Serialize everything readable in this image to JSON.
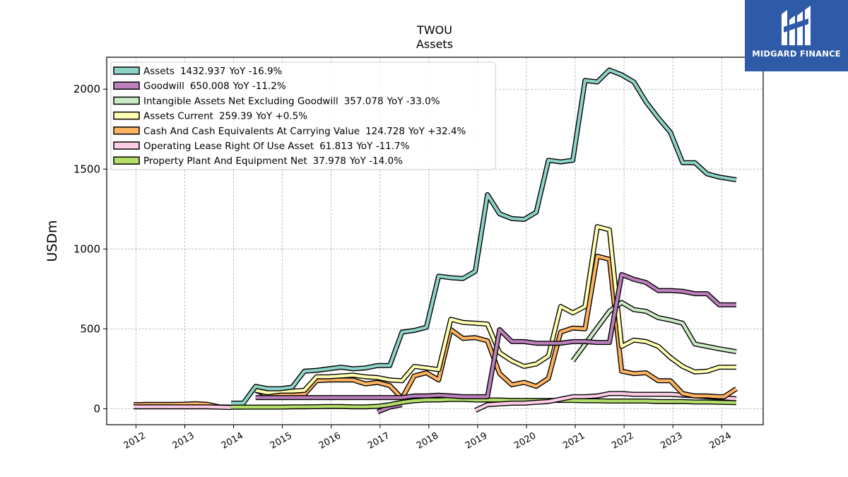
{
  "brand": {
    "name": "MIDGARD FINANCE",
    "color": "#2f5aa8"
  },
  "chart_data": {
    "type": "line",
    "title": "TWOU",
    "subtitle": "Assets",
    "ylabel": "USDm",
    "xlabel": "",
    "xlim": [
      2011.4,
      2024.85
    ],
    "ylim": [
      -100,
      2200
    ],
    "yticks": [
      0,
      500,
      1000,
      1500,
      2000
    ],
    "xticks": [
      "2012",
      "2013",
      "2014",
      "2015",
      "2016",
      "2017",
      "2018",
      "2019",
      "2020",
      "2021",
      "2022",
      "2023",
      "2024"
    ],
    "grid": true,
    "legend_position": "top-left",
    "series": [
      {
        "name": "Assets",
        "value": "1432.937",
        "yoy": "YoY -16.9%",
        "color": "#8dd3c7",
        "x": [
          2013.95,
          2014.2,
          2014.45,
          2014.7,
          2014.95,
          2015.2,
          2015.45,
          2015.7,
          2015.95,
          2016.2,
          2016.45,
          2016.7,
          2016.95,
          2017.2,
          2017.45,
          2017.7,
          2017.95,
          2018.2,
          2018.45,
          2018.7,
          2018.95,
          2019.2,
          2019.45,
          2019.7,
          2019.95,
          2020.2,
          2020.45,
          2020.7,
          2020.95,
          2021.2,
          2021.45,
          2021.7,
          2021.95,
          2022.2,
          2022.45,
          2022.7,
          2022.95,
          2023.2,
          2023.45,
          2023.7,
          2023.95,
          2024.3
        ],
        "y": [
          35,
          35,
          140,
          125,
          125,
          135,
          235,
          240,
          250,
          260,
          250,
          255,
          270,
          270,
          480,
          490,
          510,
          830,
          820,
          815,
          860,
          1340,
          1220,
          1190,
          1185,
          1230,
          1555,
          1545,
          1555,
          2055,
          2045,
          2120,
          2090,
          2045,
          1920,
          1820,
          1730,
          1540,
          1540,
          1470,
          1450,
          1433
        ]
      },
      {
        "name": "Goodwill",
        "value": "650.008",
        "yoy": "YoY -11.2%",
        "color": "#bc80bd",
        "x": [
          2014.45,
          2014.7,
          2014.95,
          2015.2,
          2015.45,
          2015.7,
          2015.95,
          2016.2,
          2016.45,
          2016.7,
          2016.95,
          2017.2,
          2017.45,
          2017.7,
          2017.95,
          2018.2,
          2018.45,
          2018.7,
          2018.95,
          2019.2,
          2019.45,
          2019.7,
          2019.95,
          2020.2,
          2020.45,
          2020.7,
          2020.95,
          2021.2,
          2021.45,
          2021.7,
          2021.95,
          2022.2,
          2022.45,
          2022.7,
          2022.95,
          2023.2,
          2023.45,
          2023.7,
          2023.95,
          2024.3
        ],
        "y": [
          70,
          70,
          70,
          70,
          70,
          70,
          70,
          70,
          70,
          70,
          70,
          70,
          70,
          80,
          80,
          85,
          80,
          75,
          75,
          75,
          495,
          420,
          420,
          410,
          410,
          410,
          420,
          420,
          415,
          415,
          840,
          810,
          790,
          740,
          740,
          735,
          720,
          720,
          650,
          650
        ]
      },
      {
        "name": "Intangible Assets Net Excluding Goodwill",
        "value": "357.078",
        "yoy": "YoY -33.0%",
        "color": "#ccebc5",
        "x": [
          2020.95,
          2021.7,
          2021.95,
          2022.2,
          2022.45,
          2022.7,
          2022.95,
          2023.2,
          2023.45,
          2023.7,
          2023.95,
          2024.3
        ],
        "y": [
          300,
          610,
          665,
          620,
          610,
          570,
          555,
          535,
          405,
          390,
          375,
          357
        ]
      },
      {
        "name": "Assets Current",
        "value": "259.39",
        "yoy": "YoY +0.5%",
        "color": "#ffffb3",
        "x": [
          2014.45,
          2014.7,
          2014.95,
          2015.2,
          2015.45,
          2015.7,
          2015.95,
          2016.2,
          2016.45,
          2016.7,
          2016.95,
          2017.2,
          2017.45,
          2017.7,
          2017.95,
          2018.2,
          2018.45,
          2018.7,
          2018.95,
          2019.2,
          2019.45,
          2019.7,
          2019.95,
          2020.2,
          2020.45,
          2020.7,
          2020.95,
          2021.2,
          2021.45,
          2021.7,
          2021.95,
          2022.2,
          2022.45,
          2022.7,
          2022.95,
          2023.2,
          2023.45,
          2023.7,
          2023.95,
          2024.3
        ],
        "y": [
          115,
          100,
          110,
          110,
          115,
          200,
          200,
          205,
          210,
          200,
          195,
          180,
          175,
          265,
          255,
          245,
          560,
          540,
          535,
          530,
          350,
          300,
          265,
          280,
          330,
          640,
          600,
          640,
          1140,
          1120,
          390,
          430,
          420,
          390,
          320,
          265,
          230,
          235,
          260,
          260
        ]
      },
      {
        "name": "Cash And Cash Equivalents At Carrying Value",
        "value": "124.728",
        "yoy": "YoY +32.4%",
        "color": "#fdb462",
        "x": [
          2014.45,
          2014.7,
          2014.95,
          2015.2,
          2015.45,
          2015.7,
          2015.95,
          2016.2,
          2016.45,
          2016.7,
          2016.95,
          2017.2,
          2017.45,
          2017.7,
          2017.95,
          2018.2,
          2018.45,
          2018.7,
          2018.95,
          2019.2,
          2019.45,
          2019.7,
          2019.95,
          2020.2,
          2020.45,
          2020.7,
          2020.95,
          2021.2,
          2021.45,
          2021.7,
          2021.95,
          2022.2,
          2022.45,
          2022.7,
          2022.95,
          2023.2,
          2023.45,
          2023.7,
          2023.95,
          2024.05,
          2024.3
        ],
        "y": [
          115,
          85,
          90,
          85,
          90,
          175,
          180,
          180,
          180,
          155,
          165,
          145,
          65,
          205,
          225,
          180,
          495,
          440,
          445,
          425,
          220,
          150,
          165,
          140,
          190,
          480,
          505,
          500,
          955,
          935,
          235,
          220,
          225,
          175,
          175,
          95,
          80,
          80,
          75,
          75,
          125
        ]
      },
      {
        "name": "Operating Lease Right Of Use Asset",
        "value": "61.813",
        "yoy": "YoY -11.7%",
        "color": "#fccde5",
        "x": [
          2018.95,
          2019.2,
          2019.45,
          2019.7,
          2019.95,
          2020.2,
          2020.45,
          2020.7,
          2020.95,
          2021.2,
          2021.45,
          2021.7,
          2021.95,
          2022.2,
          2022.45,
          2022.7,
          2022.95,
          2023.2,
          2023.45,
          2023.7,
          2023.95,
          2024.3
        ],
        "y": [
          -10,
          25,
          30,
          35,
          35,
          40,
          45,
          60,
          75,
          75,
          80,
          95,
          95,
          90,
          90,
          90,
          90,
          85,
          80,
          75,
          70,
          62
        ]
      },
      {
        "name": "Property Plant And Equipment Net",
        "value": "37.978",
        "yoy": "YoY -14.0%",
        "color": "#b3de69",
        "x": [
          2013.95,
          2014.2,
          2014.45,
          2014.7,
          2014.95,
          2015.2,
          2015.45,
          2015.7,
          2015.95,
          2016.2,
          2016.45,
          2016.7,
          2016.95,
          2017.2,
          2017.45,
          2017.7,
          2017.95,
          2018.2,
          2018.45,
          2018.7,
          2018.95,
          2019.2,
          2019.45,
          2019.7,
          2019.95,
          2020.2,
          2020.45,
          2020.7,
          2020.95,
          2021.2,
          2021.45,
          2021.7,
          2021.95,
          2022.2,
          2022.45,
          2022.7,
          2022.95,
          2023.2,
          2023.45,
          2023.7,
          2023.95,
          2024.3
        ],
        "y": [
          10,
          10,
          10,
          10,
          10,
          12,
          12,
          13,
          14,
          14,
          12,
          12,
          15,
          25,
          40,
          50,
          55,
          55,
          58,
          58,
          55,
          55,
          55,
          52,
          52,
          52,
          52,
          52,
          52,
          50,
          50,
          48,
          48,
          48,
          48,
          45,
          45,
          45,
          42,
          42,
          40,
          38
        ]
      }
    ],
    "extra_lines": [
      {
        "color": "#fdb462",
        "x": [
          2011.95,
          2012.2,
          2012.45,
          2012.7,
          2012.95,
          2013.2,
          2013.45,
          2013.7,
          2013.95,
          2014.2
        ],
        "y": [
          25,
          27,
          27,
          27,
          28,
          32,
          28,
          12,
          10,
          10
        ]
      },
      {
        "color": "#fccde5",
        "x": [
          2011.95,
          2012.2,
          2012.45,
          2012.7,
          2012.95,
          2013.2,
          2013.45,
          2013.7,
          2013.95
        ],
        "y": [
          12,
          12,
          12,
          12,
          12,
          12,
          12,
          10,
          8
        ]
      },
      {
        "color": "#bc80bd",
        "x": [
          2016.95,
          2017.2,
          2017.45
        ],
        "y": [
          -20,
          10,
          25
        ]
      }
    ]
  }
}
